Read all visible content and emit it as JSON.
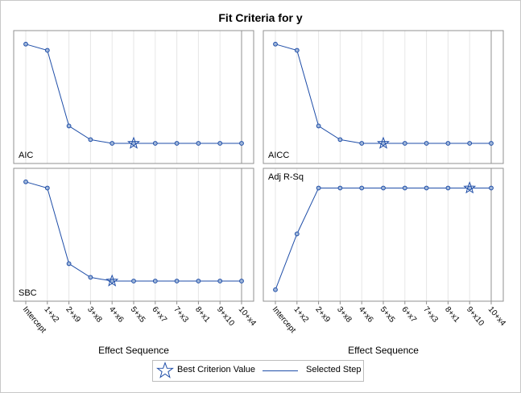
{
  "figure": {
    "title": "Fit Criteria for y",
    "legend": {
      "best_label": "Best Criterion Value",
      "selected_label": "Selected Step"
    }
  },
  "colors": {
    "series": "#1f4ea8",
    "marker_fill": "#9fb6d9",
    "frame": "#909090",
    "grid": "#e6e6e6",
    "selected_line": "#909090"
  },
  "chart_data": {
    "type": "line",
    "categories": [
      "Intercept",
      "1+x2",
      "2+x9",
      "3+x8",
      "4+x6",
      "5+x5",
      "6+x7",
      "7+x3",
      "8+x1",
      "9+x10",
      "10+x4"
    ],
    "xlabel": "Effect Sequence",
    "selected_step": "10+x4",
    "panels": [
      {
        "label": "AIC",
        "values": [
          0.93,
          0.88,
          0.27,
          0.16,
          0.13,
          0.13,
          0.13,
          0.13,
          0.13,
          0.13,
          0.13
        ],
        "best_index": 5,
        "ylim": [
          0,
          1
        ]
      },
      {
        "label": "AICC",
        "values": [
          0.93,
          0.88,
          0.27,
          0.16,
          0.13,
          0.13,
          0.13,
          0.13,
          0.13,
          0.13,
          0.13
        ],
        "best_index": 5,
        "ylim": [
          0,
          1
        ]
      },
      {
        "label": "SBC",
        "values": [
          0.93,
          0.88,
          0.27,
          0.16,
          0.13,
          0.13,
          0.13,
          0.13,
          0.13,
          0.13,
          0.13
        ],
        "best_index": 4,
        "ylim": [
          0,
          1
        ]
      },
      {
        "label": "Adj R-Sq",
        "values": [
          0.06,
          0.51,
          0.88,
          0.88,
          0.88,
          0.88,
          0.88,
          0.88,
          0.88,
          0.88,
          0.88
        ],
        "best_index": 9,
        "ylim": [
          0,
          1
        ]
      }
    ]
  }
}
